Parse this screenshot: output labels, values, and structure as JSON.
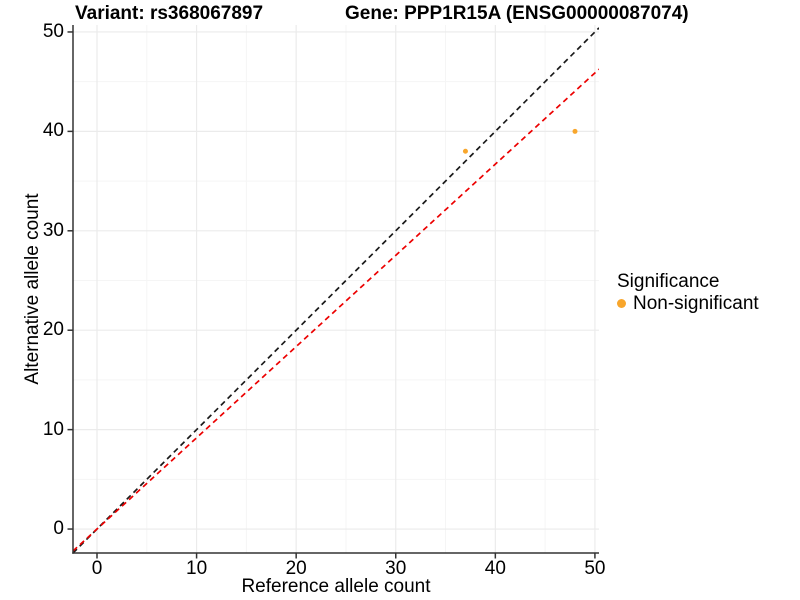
{
  "colors": {
    "background": "#FFFFFF",
    "grid_major": "#EBEBEB",
    "grid_minor": "#F5F5F5",
    "axis_line": "#333333",
    "tick_mark": "#333333",
    "text": "#000000",
    "point_orange": "#F8A62C",
    "identity_line": "#1A1A1A",
    "ratio_line": "#EC0000"
  },
  "legend": {
    "title": "Significance",
    "items": [
      {
        "label": "Non-significant",
        "color": "#F8A62C"
      }
    ]
  },
  "chart_data": {
    "type": "scatter",
    "title_left": "Variant: rs368067897",
    "title_right": "Gene: PPP1R15A (ENSG00000087074)",
    "xlabel": "Reference allele count",
    "ylabel": "Alternative allele count",
    "xlim": [
      -2.41,
      50.41
    ],
    "ylim": [
      -2.41,
      50.7
    ],
    "x_ticks": [
      0,
      10,
      20,
      30,
      40,
      50
    ],
    "y_ticks": [
      0,
      10,
      20,
      30,
      40,
      50
    ],
    "x_minor_ticks": [
      5,
      15,
      25,
      35,
      45
    ],
    "y_minor_ticks": [
      5,
      15,
      25,
      35,
      45
    ],
    "grid": "on",
    "legend_position": "right",
    "series": [
      {
        "name": "Non-significant",
        "color": "#F8A62C",
        "points": [
          {
            "x": 37,
            "y": 38
          },
          {
            "x": 48,
            "y": 40
          }
        ]
      }
    ],
    "reference_lines": [
      {
        "name": "identity",
        "slope": 1,
        "intercept": 0,
        "color": "#1A1A1A",
        "style": "dashed"
      },
      {
        "name": "expected-allelic-ratio",
        "slope": 0.9176,
        "intercept": 0,
        "color": "#EC0000",
        "style": "dashed"
      }
    ]
  }
}
